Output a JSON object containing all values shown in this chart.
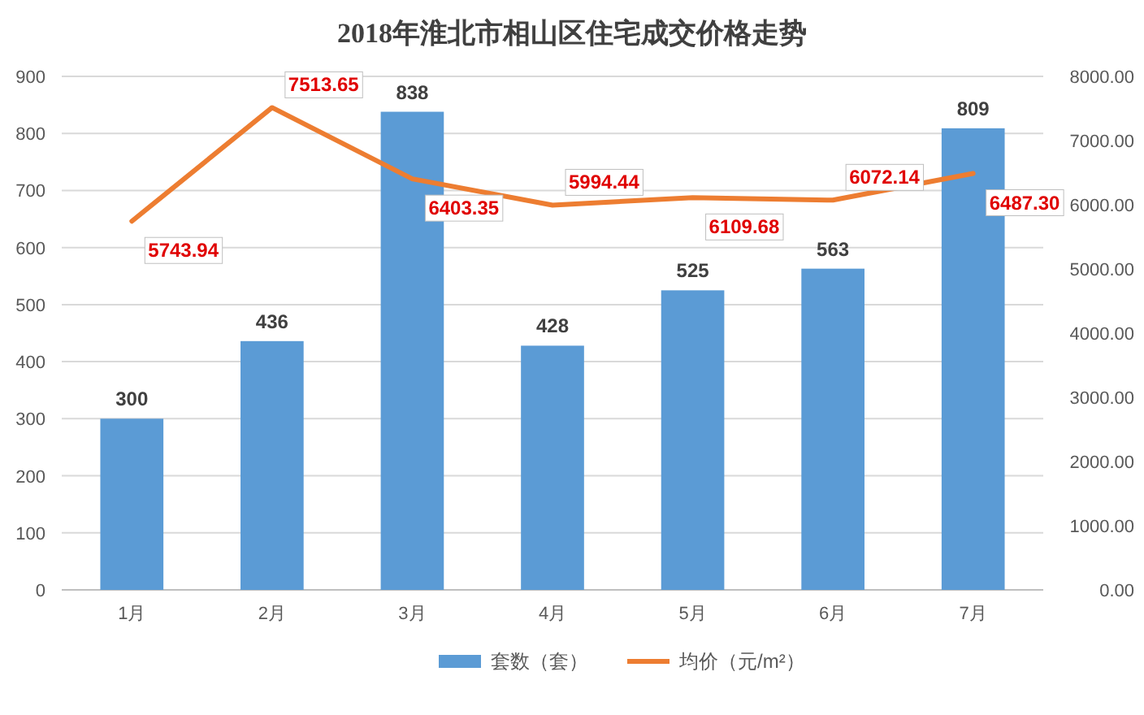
{
  "chart_data": {
    "type": "bar",
    "title": "2018年淮北市相山区住宅成交价格走势",
    "categories": [
      "1月",
      "2月",
      "3月",
      "4月",
      "5月",
      "6月",
      "7月"
    ],
    "series": [
      {
        "name": "套数（套）",
        "color": "#5b9bd5",
        "values": [
          300,
          436,
          838,
          428,
          525,
          563,
          809
        ],
        "data_labels": true
      },
      {
        "name": "均价（元/m²）",
        "type": "line",
        "axis": "y2",
        "color": "#ed7d31",
        "values": [
          5743.94,
          7513.65,
          6403.35,
          5994.44,
          6109.68,
          6072.14,
          6487.3
        ],
        "value_labels": [
          "5743.94",
          "7513.65",
          "6403.35",
          "5994.44",
          "6109.68",
          "6072.14",
          "6487.30"
        ]
      }
    ],
    "ylim": [
      0,
      900
    ],
    "yticks": [
      0,
      100,
      200,
      300,
      400,
      500,
      600,
      700,
      800,
      900
    ],
    "y2lim": [
      0,
      8000
    ],
    "y2ticks": [
      {
        "value": 0,
        "label": "0.00"
      },
      {
        "value": 1000,
        "label": "1000.00"
      },
      {
        "value": 2000,
        "label": "2000.00"
      },
      {
        "value": 3000,
        "label": "3000.00"
      },
      {
        "value": 4000,
        "label": "4000.00"
      },
      {
        "value": 5000,
        "label": "5000.00"
      },
      {
        "value": 6000,
        "label": "6000.00"
      },
      {
        "value": 7000,
        "label": "7000.00"
      },
      {
        "value": 8000,
        "label": "8000.00"
      }
    ],
    "grid": "y",
    "legend": "bottom",
    "marker": "none",
    "line_style": "solid"
  }
}
